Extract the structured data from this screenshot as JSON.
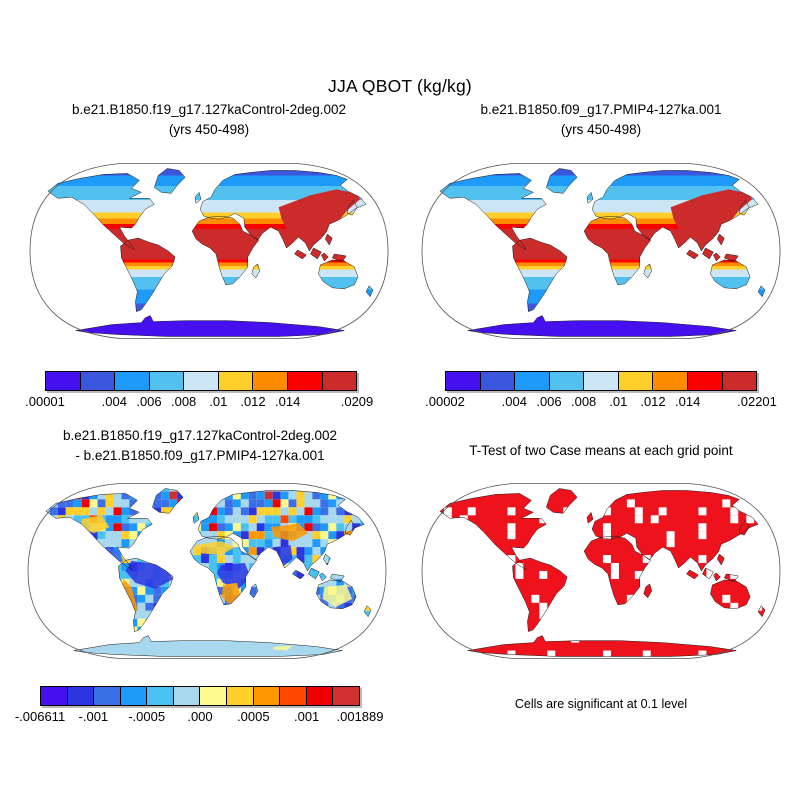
{
  "main_title": "JJA QBOT (kg/kg)",
  "panels": {
    "top_left": {
      "title": "b.e21.B1850.f19_g17.127kaControl-2deg.002",
      "subtitle": "(yrs 450-498)",
      "colorbar": {
        "labels": [
          ".00001",
          ".004",
          ".006",
          ".008",
          ".01",
          ".012",
          ".014",
          ".0209"
        ],
        "positions": [
          0,
          0.2222,
          0.3333,
          0.4444,
          0.5556,
          0.6667,
          0.7778,
          1
        ]
      }
    },
    "top_right": {
      "title": "b.e21.B1850.f09_g17.PMIP4-127ka.001",
      "subtitle": "(yrs 450-498)",
      "colorbar": {
        "labels": [
          ".00002",
          ".004",
          ".006",
          ".008",
          ".01",
          ".012",
          ".014",
          ".02201"
        ],
        "positions": [
          0,
          0.2222,
          0.3333,
          0.4444,
          0.5556,
          0.6667,
          0.7778,
          1
        ]
      }
    },
    "bottom_left": {
      "title": "b.e21.B1850.f19_g17.127kaControl-2deg.002",
      "subtitle": "- b.e21.B1850.f09_g17.PMIP4-127ka.001",
      "colorbar": {
        "labels": [
          "-.006611",
          "-.001",
          "-.0005",
          ".000",
          ".0005",
          ".001",
          ".001889"
        ],
        "positions": [
          0,
          0.1667,
          0.3333,
          0.5,
          0.6667,
          0.8333,
          1
        ]
      }
    },
    "bottom_right": {
      "title": "T-Test of two Case means at each grid point",
      "caption": "Cells are significant at 0.1 level"
    }
  },
  "colors": {
    "qbot_scale": [
      "#4411EE",
      "#3A57DD",
      "#1E9AFA",
      "#53C1F0",
      "#CCE6F5",
      "#FFD02B",
      "#FF8C00",
      "#FA0000",
      "#CC2B2B"
    ],
    "diff_scale": [
      "#4411EE",
      "#2B35E0",
      "#3B6FE8",
      "#1E9AFA",
      "#49C2F2",
      "#A8D8EE",
      "#FDF98F",
      "#FFD02B",
      "#FF9800",
      "#FF4700",
      "#EE0000",
      "#D03030"
    ],
    "ttest_significant": "#EE121C",
    "coastline": "#1b1b1b",
    "map_outline": "#555555"
  },
  "chart_data": [
    {
      "panel": "top_left",
      "type": "heatmap",
      "subtype": "global-map-robinson",
      "variable": "QBOT",
      "season": "JJA",
      "units": "kg/kg",
      "case": "b.e21.B1850.f19_g17.127kaControl-2deg.002",
      "years": "450-498",
      "min": 1e-05,
      "max": 0.0209,
      "labeled_levels": [
        0.004,
        0.006,
        0.008,
        0.01,
        0.012,
        0.014
      ],
      "n_color_bins": 9,
      "legend_position": "below"
    },
    {
      "panel": "top_right",
      "type": "heatmap",
      "subtype": "global-map-robinson",
      "variable": "QBOT",
      "season": "JJA",
      "units": "kg/kg",
      "case": "b.e21.B1850.f09_g17.PMIP4-127ka.001",
      "years": "450-498",
      "min": 2e-05,
      "max": 0.02201,
      "labeled_levels": [
        0.004,
        0.006,
        0.008,
        0.01,
        0.012,
        0.014
      ],
      "n_color_bins": 9,
      "legend_position": "below"
    },
    {
      "panel": "bottom_left",
      "type": "heatmap",
      "subtype": "global-map-robinson-difference",
      "variable": "QBOT difference",
      "case": "b.e21.B1850.f19_g17.127kaControl-2deg.002 - b.e21.B1850.f09_g17.PMIP4-127ka.001",
      "min": -0.006611,
      "max": 0.001889,
      "labeled_levels": [
        -0.001,
        -0.0005,
        0,
        0.0005,
        0.001
      ],
      "n_color_bins": 12,
      "legend_position": "below"
    },
    {
      "panel": "bottom_right",
      "type": "heatmap",
      "subtype": "global-map-robinson-significance",
      "title": "T-Test of two Case means at each grid point",
      "note": "Cells are significant at 0.1 level",
      "significance_level": 0.1
    }
  ]
}
